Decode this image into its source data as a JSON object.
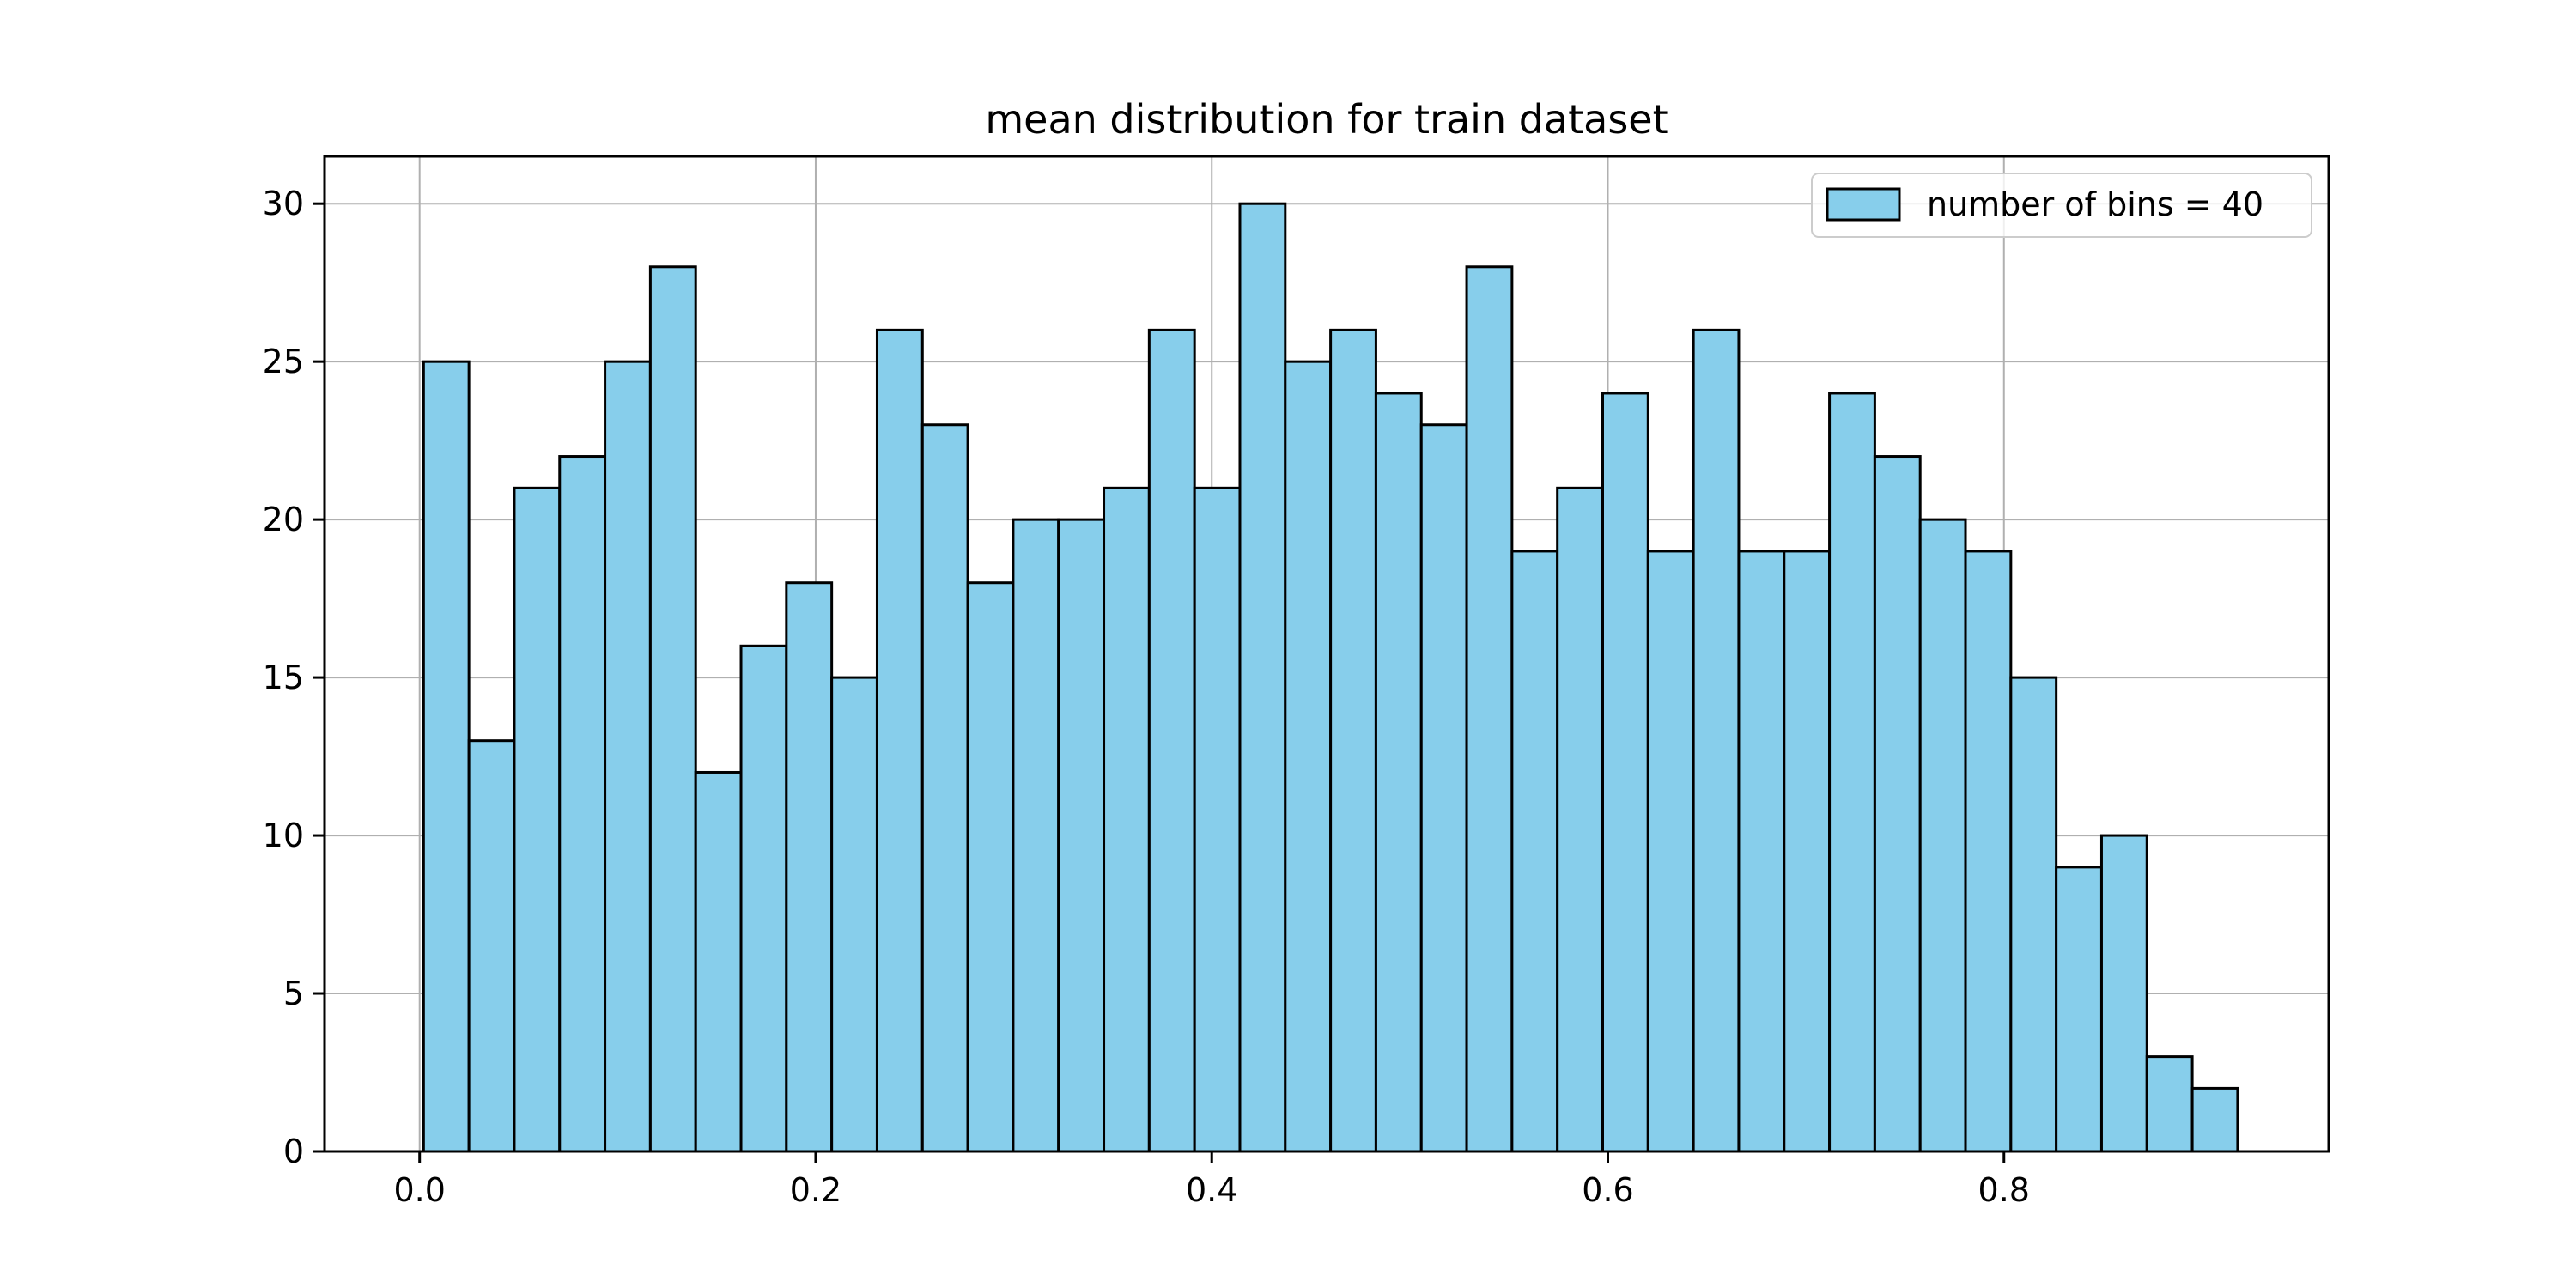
{
  "chart_data": {
    "type": "bar",
    "title": "mean distribution for train dataset",
    "xlabel": "",
    "ylabel": "",
    "xlim": [
      -0.048,
      0.964
    ],
    "ylim": [
      0,
      31.5
    ],
    "x_ticks": [
      0.0,
      0.2,
      0.4,
      0.6,
      0.8
    ],
    "x_tick_labels": [
      "0.0",
      "0.2",
      "0.4",
      "0.6",
      "0.8"
    ],
    "y_ticks": [
      0,
      5,
      10,
      15,
      20,
      25,
      30
    ],
    "y_tick_labels": [
      "0",
      "5",
      "10",
      "15",
      "20",
      "25",
      "30"
    ],
    "grid": true,
    "legend_position": "top-right",
    "bin_start": 0.002,
    "bin_width": 0.0229,
    "series": [
      {
        "name": "number of bins = 40",
        "color": "#87ceeb",
        "edge_color": "#000000",
        "values": [
          25,
          13,
          21,
          22,
          25,
          28,
          12,
          16,
          18,
          15,
          26,
          23,
          18,
          20,
          20,
          21,
          26,
          21,
          30,
          25,
          26,
          24,
          23,
          28,
          19,
          21,
          24,
          19,
          26,
          19,
          19,
          24,
          22,
          20,
          19,
          15,
          9,
          10,
          3,
          2
        ]
      }
    ]
  }
}
